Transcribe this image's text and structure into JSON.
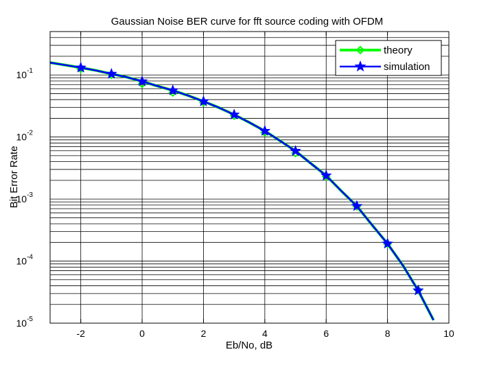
{
  "chart_data": {
    "type": "line",
    "title": "Gaussian Noise BER curve for fft source coding with OFDM",
    "xlabel": "Eb/No, dB",
    "ylabel": "Bit Error Rate",
    "xlim": [
      -3,
      10
    ],
    "ylim": [
      1e-05,
      0.5
    ],
    "yscale": "log",
    "grid": true,
    "legend_position": "top-right",
    "x_ticks": [
      {
        "value": -2,
        "label": "-2"
      },
      {
        "value": 0,
        "label": "0"
      },
      {
        "value": 2,
        "label": "2"
      },
      {
        "value": 4,
        "label": "4"
      },
      {
        "value": 6,
        "label": "6"
      },
      {
        "value": 8,
        "label": "8"
      },
      {
        "value": 10,
        "label": "10"
      }
    ],
    "y_ticks": [
      {
        "value": 0.1,
        "base": "10",
        "exp": "-1"
      },
      {
        "value": 0.01,
        "base": "10",
        "exp": "-2"
      },
      {
        "value": 0.001,
        "base": "10",
        "exp": "-3"
      },
      {
        "value": 0.0001,
        "base": "10",
        "exp": "-4"
      },
      {
        "value": 1e-05,
        "base": "10",
        "exp": "-5"
      }
    ],
    "series": [
      {
        "name": "theory",
        "color": "#00ff00",
        "marker": "diamond",
        "curve_x": [
          -3,
          -2.5,
          -2,
          -1.5,
          -1,
          -0.5,
          0,
          0.5,
          1,
          1.5,
          2,
          2.5,
          3,
          3.5,
          4,
          4.5,
          5,
          5.5,
          6,
          6.5,
          7,
          7.5,
          8,
          8.5,
          9,
          9.5
        ],
        "curve_y": [
          0.158,
          0.144,
          0.131,
          0.118,
          0.104,
          0.0921,
          0.0786,
          0.0662,
          0.0563,
          0.0465,
          0.0375,
          0.0298,
          0.0229,
          0.0171,
          0.0125,
          0.00865,
          0.00595,
          0.00375,
          0.00239,
          0.00134,
          0.00077,
          0.00038,
          0.000191,
          8.55e-05,
          3.36e-05,
          1.12e-05
        ],
        "marker_x": [
          -2,
          -1,
          0,
          1,
          2,
          3,
          4,
          5,
          6,
          7,
          8,
          9
        ],
        "marker_y": [
          0.125,
          0.1,
          0.072,
          0.052,
          0.036,
          0.022,
          0.0118,
          0.0055,
          0.0023,
          0.00076,
          0.00019,
          3.4e-05
        ]
      },
      {
        "name": "simulation",
        "color": "#0000ff",
        "marker": "star",
        "curve_x": [
          -3,
          -2.5,
          -2,
          -1.5,
          -1,
          -0.5,
          0,
          0.5,
          1,
          1.5,
          2,
          2.5,
          3,
          3.5,
          4,
          4.5,
          5,
          5.5,
          6,
          6.5,
          7,
          7.5,
          8,
          8.5,
          9,
          9.5
        ],
        "curve_y": [
          0.158,
          0.144,
          0.131,
          0.118,
          0.104,
          0.0921,
          0.0786,
          0.0662,
          0.0563,
          0.0465,
          0.0375,
          0.0298,
          0.0229,
          0.0171,
          0.0125,
          0.00865,
          0.00595,
          0.00375,
          0.00239,
          0.00134,
          0.00077,
          0.00038,
          0.000191,
          8.55e-05,
          3.36e-05,
          1.12e-05
        ],
        "marker_x": [
          -2,
          -1,
          0,
          1,
          2,
          3,
          4,
          5,
          6,
          7,
          8,
          9
        ],
        "marker_y": [
          0.131,
          0.104,
          0.0786,
          0.0563,
          0.0375,
          0.0229,
          0.0125,
          0.00595,
          0.00239,
          0.00077,
          0.000191,
          3.36e-05
        ]
      }
    ]
  }
}
